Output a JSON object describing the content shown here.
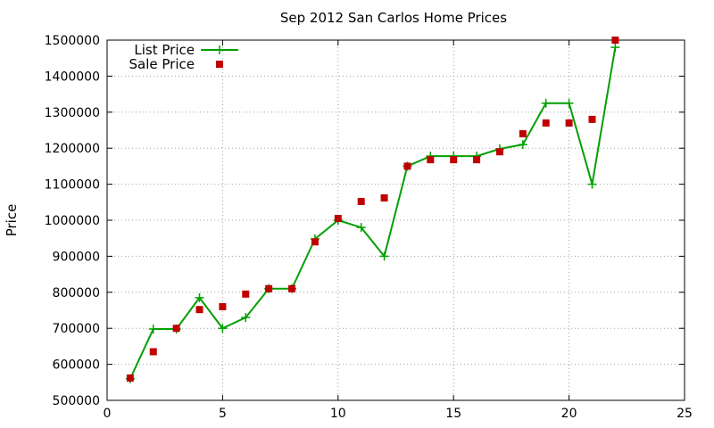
{
  "chart_data": {
    "type": "line",
    "title": "Sep 2012 San Carlos Home Prices",
    "xlabel": "",
    "ylabel": "Price",
    "xlim": [
      0,
      25
    ],
    "ylim": [
      500000,
      1500000
    ],
    "x_ticks": [
      0,
      5,
      10,
      15,
      20,
      25
    ],
    "y_ticks": [
      500000,
      600000,
      700000,
      800000,
      900000,
      1000000,
      1100000,
      1200000,
      1300000,
      1400000,
      1500000
    ],
    "grid": true,
    "legend_position": "top-left",
    "series": [
      {
        "name": "List Price",
        "style": "line+cross",
        "color": "#00a000",
        "x": [
          1,
          2,
          3,
          4,
          5,
          6,
          7,
          8,
          9,
          10,
          11,
          12,
          13,
          14,
          15,
          16,
          17,
          18,
          19,
          20,
          21,
          22
        ],
        "values": [
          560000,
          698000,
          698000,
          785000,
          700000,
          730000,
          810000,
          810000,
          948000,
          1000000,
          980000,
          900000,
          1150000,
          1178000,
          1178000,
          1178000,
          1198000,
          1210000,
          1325000,
          1325000,
          1100000,
          1480000
        ]
      },
      {
        "name": "Sale Price",
        "style": "square",
        "color": "#c00000",
        "x": [
          1,
          2,
          3,
          4,
          5,
          6,
          7,
          8,
          9,
          10,
          11,
          12,
          13,
          14,
          15,
          16,
          17,
          18,
          19,
          20,
          21,
          22
        ],
        "values": [
          562000,
          635000,
          700000,
          752000,
          760000,
          795000,
          810000,
          810000,
          940000,
          1005000,
          1052000,
          1062000,
          1150000,
          1168000,
          1168000,
          1168000,
          1190000,
          1240000,
          1270000,
          1270000,
          1280000,
          1500000
        ]
      }
    ]
  }
}
